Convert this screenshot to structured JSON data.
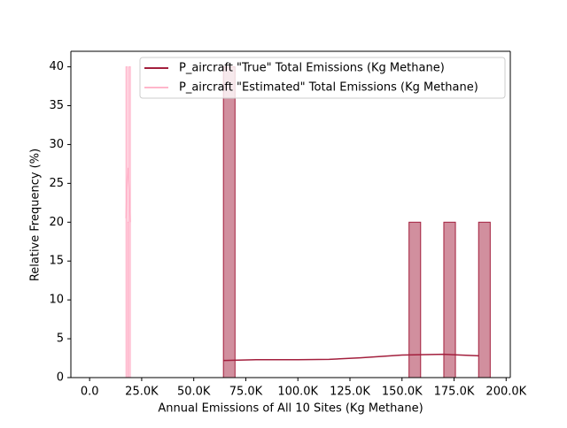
{
  "chart_data": {
    "type": "histogram",
    "xlabel": "Annual Emissions of All 10 Sites (Kg Methane)",
    "ylabel": "Relative Frequency (%)",
    "xlim": [
      -9000,
      202000
    ],
    "ylim": [
      0,
      42
    ],
    "xticks": [
      {
        "value": 0,
        "label": "0.0"
      },
      {
        "value": 25000,
        "label": "25.0K"
      },
      {
        "value": 50000,
        "label": "50.0K"
      },
      {
        "value": 75000,
        "label": "75.0K"
      },
      {
        "value": 100000,
        "label": "100.0K"
      },
      {
        "value": 125000,
        "label": "125.0K"
      },
      {
        "value": 150000,
        "label": "150.0K"
      },
      {
        "value": 175000,
        "label": "175.0K"
      },
      {
        "value": 200000,
        "label": "200.0K"
      }
    ],
    "yticks": [
      0,
      5,
      10,
      15,
      20,
      25,
      30,
      35,
      40
    ],
    "legend": "upper right",
    "series": [
      {
        "name": "P_aircraft \"True\" Total Emissions (Kg Methane)",
        "color": "#a31f3d",
        "bins": [
          64250,
          69820,
          75390,
          80960,
          86530,
          92100,
          97670,
          103240,
          108810,
          114380,
          119950,
          125520,
          131090,
          136660,
          142230,
          147800,
          153370,
          158940,
          164510,
          170080,
          175650,
          181220,
          186790,
          192360
        ],
        "values": [
          40,
          0,
          0,
          0,
          0,
          0,
          0,
          0,
          0,
          0,
          0,
          0,
          0,
          0,
          0,
          0,
          20,
          0,
          0,
          20,
          0,
          0,
          20
        ],
        "kde": {
          "x": [
            64250,
            80000,
            100000,
            115000,
            130000,
            150000,
            170000,
            187000
          ],
          "y": [
            2.2,
            2.3,
            2.3,
            2.35,
            2.55,
            2.9,
            3.0,
            2.8
          ]
        }
      },
      {
        "name": "P_aircraft \"Estimated\" Total Emissions (Kg Methane)",
        "color": "#ffb6cb",
        "bins": [
          17450,
          18160,
          18870,
          19580
        ],
        "values": [
          40,
          20,
          40
        ],
        "kde": {
          "x": [
            17450,
            18000,
            18500,
            19000,
            19580
          ],
          "y": [
            20.5,
            25.5,
            27,
            24,
            20
          ]
        }
      }
    ]
  }
}
